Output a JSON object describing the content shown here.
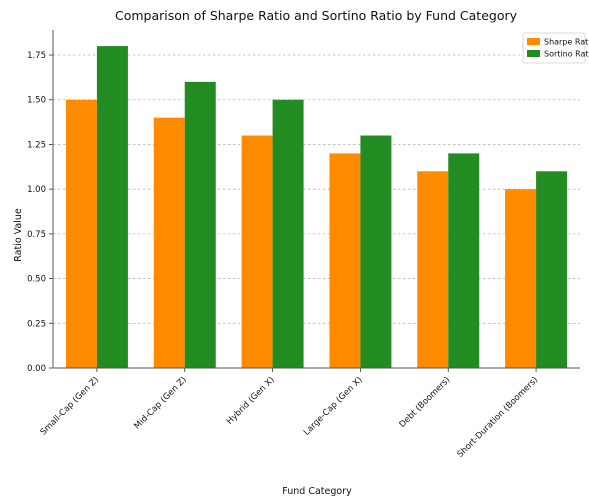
{
  "chart_data": {
    "type": "bar",
    "title": "Comparison of Sharpe Ratio and Sortino Ratio by Fund Category",
    "xlabel": "Fund Category",
    "ylabel": "Ratio Value",
    "categories": [
      "Small-Cap (Gen Z)",
      "Mid-Cap (Gen Z)",
      "Hybrid (Gen X)",
      "Large-Cap (Gen X)",
      "Debt (Boomers)",
      "Short-Duration (Boomers)"
    ],
    "series": [
      {
        "name": "Sharpe Ratio",
        "color": "#ff8c00",
        "values": [
          1.5,
          1.4,
          1.3,
          1.2,
          1.1,
          1.0
        ]
      },
      {
        "name": "Sortino Ratio",
        "color": "#228b22",
        "values": [
          1.8,
          1.6,
          1.5,
          1.3,
          1.2,
          1.1
        ]
      }
    ],
    "yticks": [
      "0.00",
      "0.25",
      "0.50",
      "0.75",
      "1.00",
      "1.25",
      "1.50",
      "1.75"
    ],
    "ylim": [
      0,
      1.89
    ],
    "grid": "y-dashed",
    "legend_position": "top-right"
  }
}
